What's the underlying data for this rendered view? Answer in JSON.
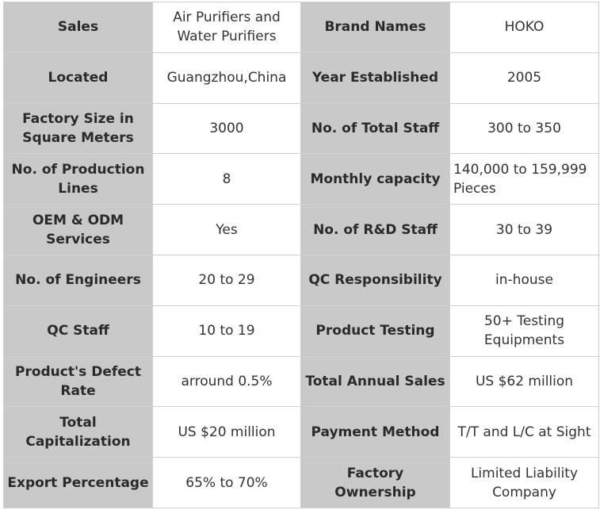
{
  "rows": [
    {
      "l1": "Sales",
      "v1": "Air Purifiers and Water Purifiers",
      "l2": "Brand Names",
      "v2": "HOKO"
    },
    {
      "l1": "Located",
      "v1": "Guangzhou,China",
      "l2": "Year Established",
      "v2": "2005"
    },
    {
      "l1": "Factory Size in Square Meters",
      "v1": "3000",
      "l2": "No. of Total Staff",
      "v2": "300 to 350"
    },
    {
      "l1": "No. of Production Lines",
      "v1": "8",
      "l2": "Monthly capacity",
      "v2": "140,000 to 159,999 Pieces"
    },
    {
      "l1": "OEM & ODM Services",
      "v1": "Yes",
      "l2": "No. of R&D Staff",
      "v2": "30 to 39"
    },
    {
      "l1": "No. of Engineers",
      "v1": "20 to 29",
      "l2": "QC Responsibility",
      "v2": "in-house"
    },
    {
      "l1": "QC Staff",
      "v1": "10 to 19",
      "l2": "Product Testing",
      "v2": "50+ Testing Equipments"
    },
    {
      "l1": "Product's Defect Rate",
      "v1": "arround 0.5%",
      "l2": "Total Annual Sales",
      "v2": "US $62 million"
    },
    {
      "l1": "Total Capitalization",
      "v1": "US $20 million",
      "l2": "Payment Method",
      "v2": "T/T and L/C at Sight"
    },
    {
      "l1": "Export Percentage",
      "v1": "65% to 70%",
      "l2": "Factory Ownership",
      "v2": "Limited Liability Company"
    }
  ]
}
